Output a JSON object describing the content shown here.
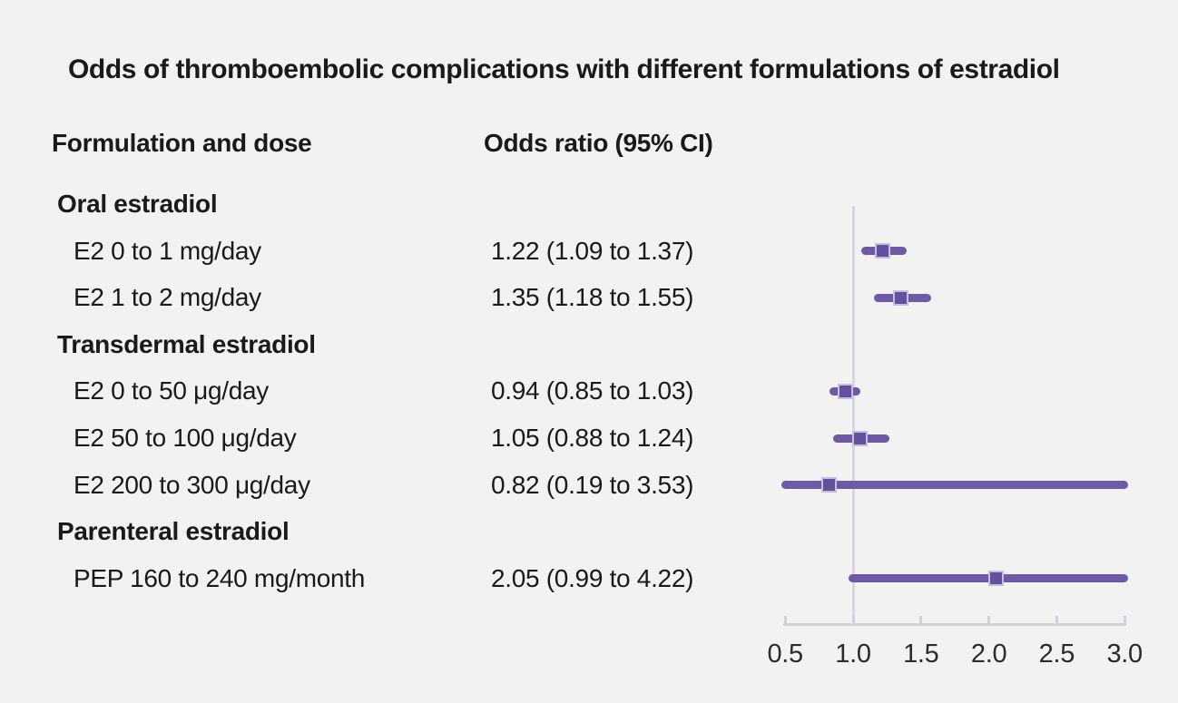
{
  "title": "Odds of thromboembolic complications with different formulations of estradiol",
  "columns": {
    "formulation": "Formulation and dose",
    "odds_ratio": "Odds ratio (95% CI)"
  },
  "chart_data": {
    "type": "forest-plot",
    "xlim": [
      0.5,
      3.0
    ],
    "reference_line": 1.0,
    "grid": false,
    "tick_labels": [
      "0.5",
      "1.0",
      "1.5",
      "2.0",
      "2.5",
      "3.0"
    ],
    "tick_values": [
      0.5,
      1.0,
      1.5,
      2.0,
      2.5,
      3.0
    ],
    "rows": [
      {
        "kind": "group",
        "label": "Oral estradiol"
      },
      {
        "kind": "item",
        "label": "E2 0 to 1 mg/day",
        "or_text": "1.22 (1.09 to 1.37)",
        "or": 1.22,
        "lo": 1.09,
        "hi": 1.37
      },
      {
        "kind": "item",
        "label": "E2 1 to 2 mg/day",
        "or_text": "1.35 (1.18 to 1.55)",
        "or": 1.35,
        "lo": 1.18,
        "hi": 1.55
      },
      {
        "kind": "group",
        "label": "Transdermal estradiol"
      },
      {
        "kind": "item",
        "label": "E2 0 to 50 μg/day",
        "or_text": "0.94 (0.85 to 1.03)",
        "or": 0.94,
        "lo": 0.85,
        "hi": 1.03
      },
      {
        "kind": "item",
        "label": "E2 50 to 100 μg/day",
        "or_text": "1.05 (0.88 to 1.24)",
        "or": 1.05,
        "lo": 0.88,
        "hi": 1.24
      },
      {
        "kind": "item",
        "label": "E2 200 to 300 μg/day",
        "or_text": "0.82 (0.19 to 3.53)",
        "or": 0.82,
        "lo": 0.19,
        "hi": 3.53
      },
      {
        "kind": "group",
        "label": "Parenteral estradiol"
      },
      {
        "kind": "item",
        "label": "PEP 160 to 240 mg/month",
        "or_text": "2.05 (0.99 to 4.22)",
        "or": 2.05,
        "lo": 0.99,
        "hi": 4.22
      }
    ]
  },
  "colors": {
    "background": "#f2f2f2",
    "text": "#1a1a1a",
    "ci_line": "#6d59a6",
    "point_square": "#64509e",
    "point_square_border": "#c6bde0",
    "reference_line": "#d5d8e2",
    "axis": "#cdd2dc"
  }
}
